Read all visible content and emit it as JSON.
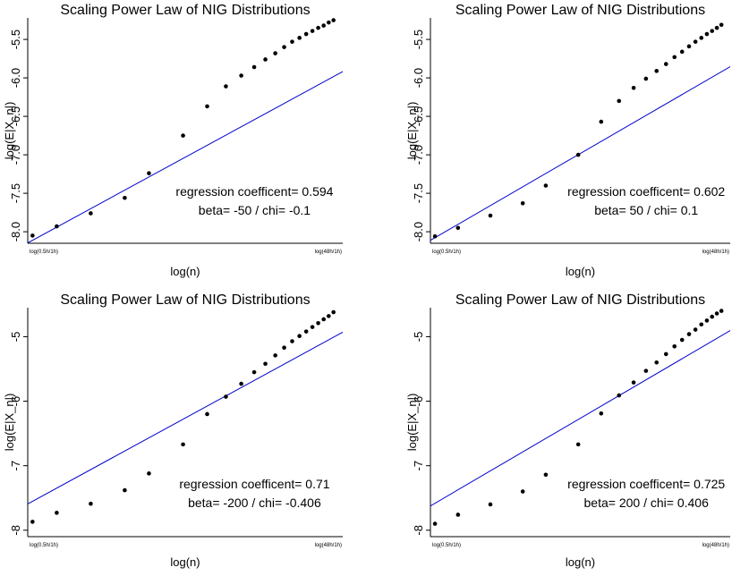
{
  "chart_data": [
    {
      "type": "scatter",
      "title": "Scaling Power Law of NIG Distributions",
      "xlabel": "log(n)",
      "ylabel": "log(E|X_n|)",
      "x_tick_labels": [
        "log(0.5h/1h)",
        "log(48h/1h)"
      ],
      "y_ticks": [
        -8.0,
        -7.5,
        -7.0,
        -6.5,
        -6.0,
        -5.5
      ],
      "y_tick_labels": [
        "-8.0",
        "-7.5",
        "-7.0",
        "-6.5",
        "-6.0",
        "-5.5"
      ],
      "ylim": [
        -8.15,
        -5.22
      ],
      "x_values": [
        -0.693,
        -0.405,
        0,
        0.405,
        0.693,
        1.099,
        1.386,
        1.609,
        1.792,
        1.946,
        2.079,
        2.197,
        2.303,
        2.398,
        2.485,
        2.565,
        2.639,
        2.708,
        2.773,
        2.833,
        2.89
      ],
      "xlim": [
        -0.75,
        3.0
      ],
      "points": [
        -8.05,
        -7.93,
        -7.76,
        -7.56,
        -7.24,
        -6.75,
        -6.37,
        -6.11,
        -5.97,
        -5.86,
        -5.76,
        -5.68,
        -5.6,
        -5.53,
        -5.48,
        -5.43,
        -5.39,
        -5.35,
        -5.32,
        -5.28,
        -5.25
      ],
      "regression": {
        "slope": 0.594,
        "intercept": -7.7,
        "color": "#0000cc"
      },
      "annotation": [
        "regression coefficent= 0.594",
        "beta= -50 / chi= -0.1"
      ]
    },
    {
      "type": "scatter",
      "title": "Scaling Power Law of NIG Distributions",
      "xlabel": "log(n)",
      "ylabel": "log(E|X_n|)",
      "x_tick_labels": [
        "log(0.5h/1h)",
        "log(48h/1h)"
      ],
      "y_ticks": [
        -8.0,
        -7.5,
        -7.0,
        -6.5,
        -6.0,
        -5.5
      ],
      "y_tick_labels": [
        "-8.0",
        "-7.5",
        "-7.0",
        "-6.5",
        "-6.0",
        "-5.5"
      ],
      "ylim": [
        -8.15,
        -5.22
      ],
      "x_values": [
        -0.693,
        -0.405,
        0,
        0.405,
        0.693,
        1.099,
        1.386,
        1.609,
        1.792,
        1.946,
        2.079,
        2.197,
        2.303,
        2.398,
        2.485,
        2.565,
        2.639,
        2.708,
        2.773,
        2.833,
        2.89
      ],
      "xlim": [
        -0.75,
        3.0
      ],
      "points": [
        -8.06,
        -7.95,
        -7.79,
        -7.63,
        -7.4,
        -7.0,
        -6.57,
        -6.3,
        -6.13,
        -6.01,
        -5.91,
        -5.82,
        -5.73,
        -5.66,
        -5.59,
        -5.53,
        -5.48,
        -5.43,
        -5.39,
        -5.35,
        -5.31
      ],
      "regression": {
        "slope": 0.602,
        "intercept": -7.66,
        "color": "#0000cc"
      },
      "annotation": [
        "regression coefficent= 0.602",
        "beta= 50 / chi= 0.1"
      ]
    },
    {
      "type": "scatter",
      "title": "Scaling Power Law of NIG Distributions",
      "xlabel": "log(n)",
      "ylabel": "log(E|X_n|)",
      "x_tick_labels": [
        "log(0.5h/1h)",
        "log(48h/1h)"
      ],
      "y_ticks": [
        -8,
        -7,
        -6,
        -5
      ],
      "y_tick_labels": [
        "-8",
        "-7",
        "-6",
        "-5"
      ],
      "ylim": [
        -8.1,
        -4.55
      ],
      "x_values": [
        -0.693,
        -0.405,
        0,
        0.405,
        0.693,
        1.099,
        1.386,
        1.609,
        1.792,
        1.946,
        2.079,
        2.197,
        2.303,
        2.398,
        2.485,
        2.565,
        2.639,
        2.708,
        2.773,
        2.833,
        2.89
      ],
      "xlim": [
        -0.75,
        3.0
      ],
      "points": [
        -7.87,
        -7.73,
        -7.59,
        -7.38,
        -7.12,
        -6.67,
        -6.2,
        -5.93,
        -5.73,
        -5.55,
        -5.42,
        -5.29,
        -5.17,
        -5.07,
        -4.99,
        -4.92,
        -4.85,
        -4.79,
        -4.73,
        -4.68,
        -4.62
      ],
      "regression": {
        "slope": 0.71,
        "intercept": -7.06,
        "color": "#0000cc"
      },
      "annotation": [
        "regression coefficent= 0.71",
        "beta= -200 / chi= -0.406"
      ]
    },
    {
      "type": "scatter",
      "title": "Scaling Power Law of NIG Distributions",
      "xlabel": "log(n)",
      "ylabel": "log(E|X_n|)",
      "x_tick_labels": [
        "log(0.5h/1h)",
        "log(48h/1h)"
      ],
      "y_ticks": [
        -8,
        -7,
        -6,
        -5
      ],
      "y_tick_labels": [
        "-8",
        "-7",
        "-6",
        "-5"
      ],
      "ylim": [
        -8.1,
        -4.55
      ],
      "x_values": [
        -0.693,
        -0.405,
        0,
        0.405,
        0.693,
        1.099,
        1.386,
        1.609,
        1.792,
        1.946,
        2.079,
        2.197,
        2.303,
        2.398,
        2.485,
        2.565,
        2.639,
        2.708,
        2.773,
        2.833,
        2.89
      ],
      "xlim": [
        -0.75,
        3.0
      ],
      "points": [
        -7.9,
        -7.76,
        -7.6,
        -7.4,
        -7.14,
        -6.67,
        -6.19,
        -5.91,
        -5.71,
        -5.53,
        -5.4,
        -5.27,
        -5.15,
        -5.05,
        -4.96,
        -4.89,
        -4.81,
        -4.75,
        -4.69,
        -4.64,
        -4.6
      ],
      "regression": {
        "slope": 0.725,
        "intercept": -7.08,
        "color": "#0000cc"
      },
      "annotation": [
        "regression coefficent= 0.725",
        "beta= 200 / chi= 0.406"
      ]
    }
  ]
}
